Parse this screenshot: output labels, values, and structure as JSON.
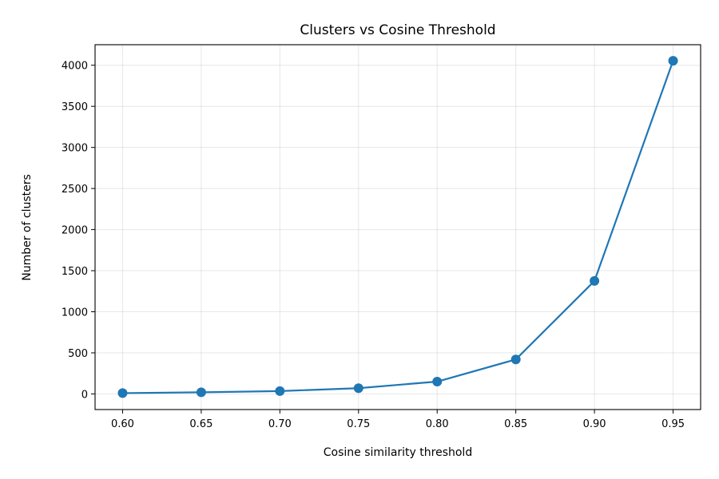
{
  "chart_data": {
    "type": "line",
    "title": "Clusters vs Cosine Threshold",
    "xlabel": "Cosine similarity threshold",
    "ylabel": "Number of clusters",
    "x": [
      0.6,
      0.65,
      0.7,
      0.75,
      0.8,
      0.85,
      0.9,
      0.95
    ],
    "x_tick_labels": [
      "0.60",
      "0.65",
      "0.70",
      "0.75",
      "0.80",
      "0.85",
      "0.90",
      "0.95"
    ],
    "xlim": [
      0.5825,
      0.9675
    ],
    "y_ticks": [
      0,
      500,
      1000,
      1500,
      2000,
      2500,
      3000,
      3500,
      4000
    ],
    "y_tick_labels": [
      "0",
      "500",
      "1000",
      "1500",
      "2000",
      "2500",
      "3000",
      "3500",
      "4000"
    ],
    "ylim": [
      -190,
      4250
    ],
    "grid": true,
    "legend": "none",
    "series": [
      {
        "color": "#1f77b4",
        "marker": "circle",
        "values": [
          10,
          20,
          35,
          70,
          150,
          420,
          1375,
          4055
        ]
      }
    ]
  }
}
